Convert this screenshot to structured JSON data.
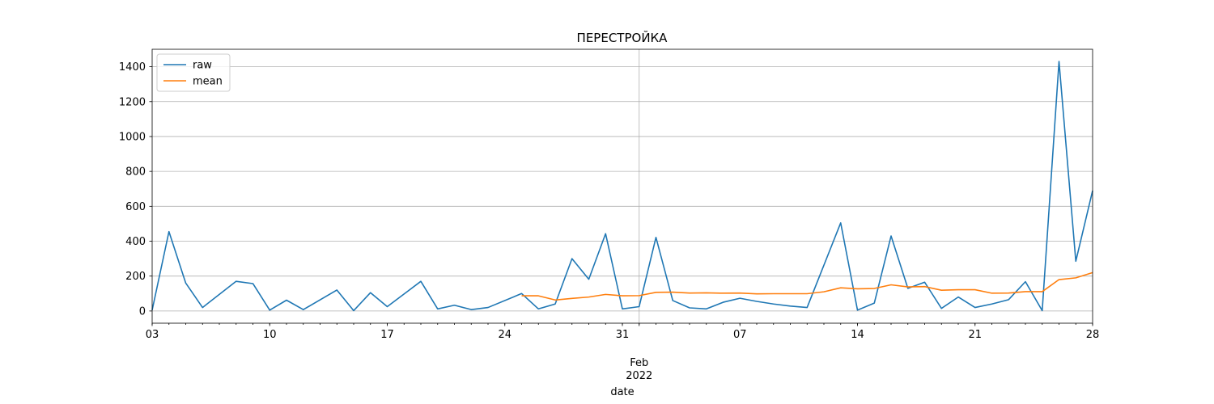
{
  "chart_data": {
    "type": "line",
    "title": "ПЕРЕСТРОЙКА",
    "xlabel": "date",
    "ylabel": "",
    "x_start": "2022-01-03",
    "x_end": "2022-02-28",
    "xlim": [
      "2022-01-03",
      "2022-02-28"
    ],
    "ylim": [
      -70,
      1500
    ],
    "y_ticks": [
      0,
      200,
      400,
      600,
      800,
      1000,
      1200,
      1400
    ],
    "x_ticks": [
      {
        "date": "2022-01-03",
        "label": "03"
      },
      {
        "date": "2022-01-10",
        "label": "10"
      },
      {
        "date": "2022-01-17",
        "label": "17"
      },
      {
        "date": "2022-01-24",
        "label": "24"
      },
      {
        "date": "2022-01-31",
        "label": "31"
      },
      {
        "date": "2022-02-07",
        "label": "07"
      },
      {
        "date": "2022-02-14",
        "label": "14"
      },
      {
        "date": "2022-02-21",
        "label": "21"
      },
      {
        "date": "2022-02-28",
        "label": "28"
      }
    ],
    "month_label": {
      "date": "2022-02-01",
      "line1": "Feb",
      "line2": "2022"
    },
    "grid": true,
    "legend": "top-left",
    "series": [
      {
        "name": "raw",
        "color": "#1f77b4",
        "points": [
          [
            "2022-01-03",
            5
          ],
          [
            "2022-01-04",
            455
          ],
          [
            "2022-01-05",
            160
          ],
          [
            "2022-01-06",
            20
          ],
          [
            "2022-01-08",
            170
          ],
          [
            "2022-01-09",
            157
          ],
          [
            "2022-01-10",
            5
          ],
          [
            "2022-01-11",
            62
          ],
          [
            "2022-01-12",
            8
          ],
          [
            "2022-01-14",
            120
          ],
          [
            "2022-01-15",
            2
          ],
          [
            "2022-01-16",
            105
          ],
          [
            "2022-01-17",
            25
          ],
          [
            "2022-01-19",
            170
          ],
          [
            "2022-01-20",
            12
          ],
          [
            "2022-01-21",
            33
          ],
          [
            "2022-01-22",
            8
          ],
          [
            "2022-01-23",
            20
          ],
          [
            "2022-01-25",
            100
          ],
          [
            "2022-01-26",
            12
          ],
          [
            "2022-01-27",
            40
          ],
          [
            "2022-01-28",
            300
          ],
          [
            "2022-01-29",
            182
          ],
          [
            "2022-01-30",
            443
          ],
          [
            "2022-01-31",
            12
          ],
          [
            "2022-02-01",
            25
          ],
          [
            "2022-02-02",
            422
          ],
          [
            "2022-02-03",
            60
          ],
          [
            "2022-02-04",
            18
          ],
          [
            "2022-02-05",
            12
          ],
          [
            "2022-02-06",
            50
          ],
          [
            "2022-02-07",
            73
          ],
          [
            "2022-02-08",
            55
          ],
          [
            "2022-02-09",
            40
          ],
          [
            "2022-02-10",
            28
          ],
          [
            "2022-02-11",
            20
          ],
          [
            "2022-02-13",
            505
          ],
          [
            "2022-02-14",
            5
          ],
          [
            "2022-02-15",
            45
          ],
          [
            "2022-02-16",
            430
          ],
          [
            "2022-02-17",
            130
          ],
          [
            "2022-02-18",
            165
          ],
          [
            "2022-02-19",
            15
          ],
          [
            "2022-02-20",
            80
          ],
          [
            "2022-02-21",
            20
          ],
          [
            "2022-02-22",
            40
          ],
          [
            "2022-02-23",
            65
          ],
          [
            "2022-02-24",
            168
          ],
          [
            "2022-02-25",
            2
          ],
          [
            "2022-02-26",
            1430
          ],
          [
            "2022-02-27",
            285
          ],
          [
            "2022-02-28",
            690
          ]
        ]
      },
      {
        "name": "mean",
        "color": "#ff7f0e",
        "points": [
          [
            "2022-01-25",
            87
          ],
          [
            "2022-01-26",
            87
          ],
          [
            "2022-01-27",
            63
          ],
          [
            "2022-01-28",
            72
          ],
          [
            "2022-01-29",
            80
          ],
          [
            "2022-01-30",
            95
          ],
          [
            "2022-01-31",
            87
          ],
          [
            "2022-02-01",
            88
          ],
          [
            "2022-02-02",
            107
          ],
          [
            "2022-02-03",
            108
          ],
          [
            "2022-02-04",
            103
          ],
          [
            "2022-02-05",
            104
          ],
          [
            "2022-02-06",
            102
          ],
          [
            "2022-02-07",
            103
          ],
          [
            "2022-02-08",
            98
          ],
          [
            "2022-02-09",
            99
          ],
          [
            "2022-02-10",
            99
          ],
          [
            "2022-02-11",
            99
          ],
          [
            "2022-02-12",
            110
          ],
          [
            "2022-02-13",
            133
          ],
          [
            "2022-02-14",
            127
          ],
          [
            "2022-02-15",
            129
          ],
          [
            "2022-02-16",
            150
          ],
          [
            "2022-02-17",
            138
          ],
          [
            "2022-02-18",
            140
          ],
          [
            "2022-02-19",
            119
          ],
          [
            "2022-02-20",
            122
          ],
          [
            "2022-02-21",
            122
          ],
          [
            "2022-02-22",
            102
          ],
          [
            "2022-02-23",
            103
          ],
          [
            "2022-02-24",
            111
          ],
          [
            "2022-02-25",
            111
          ],
          [
            "2022-02-26",
            180
          ],
          [
            "2022-02-27",
            190
          ],
          [
            "2022-02-28",
            220
          ]
        ]
      }
    ]
  }
}
